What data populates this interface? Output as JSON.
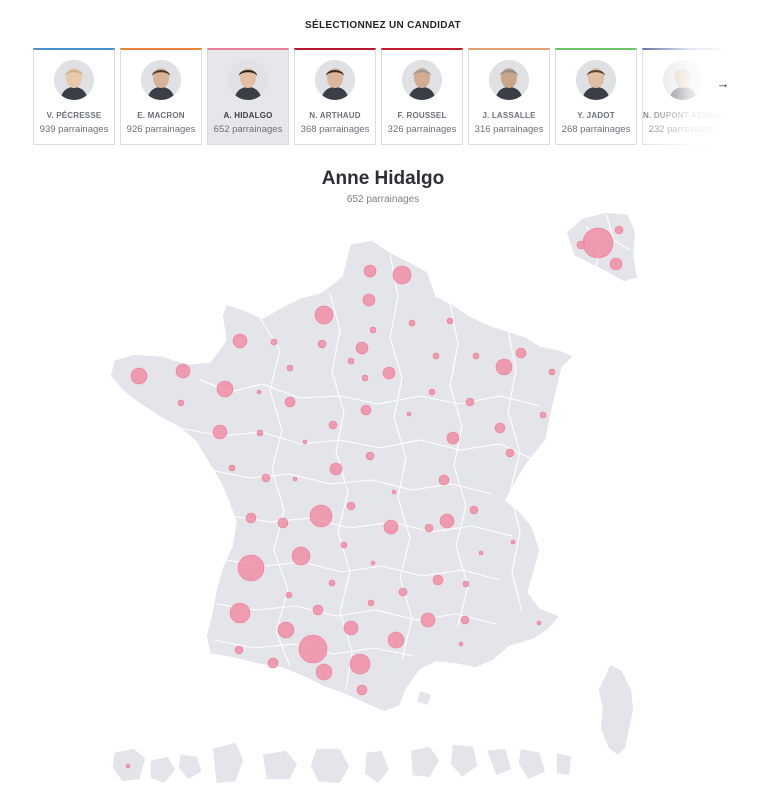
{
  "header": {
    "title": "SÉLECTIONNEZ UN CANDIDAT"
  },
  "candidates": [
    {
      "name": "V. PÉCRESSE",
      "count": "939 parrainages",
      "color": "#4a90c9",
      "icon": "portrait-photo"
    },
    {
      "name": "E. MACRON",
      "count": "926 parrainages",
      "color": "#e8843c",
      "icon": "portrait-photo"
    },
    {
      "name": "A. HIDALGO",
      "count": "652 parrainages",
      "color": "#e87d9a",
      "icon": "portrait-photo",
      "selected": true
    },
    {
      "name": "N. ARTHAUD",
      "count": "368 parrainages",
      "color": "#b3182b",
      "icon": "portrait-photo"
    },
    {
      "name": "F. ROUSSEL",
      "count": "326 parrainages",
      "color": "#c21e2e",
      "icon": "portrait-photo"
    },
    {
      "name": "J. LASSALLE",
      "count": "316 parrainages",
      "color": "#e0a074",
      "icon": "portrait-photo"
    },
    {
      "name": "Y. JADOT",
      "count": "268 parrainages",
      "color": "#6cc36a",
      "icon": "portrait-photo"
    },
    {
      "name": "N. DUPONT-AIGNAN",
      "count": "232 parrainages",
      "color": "#4b5ea8",
      "icon": "portrait-photo"
    }
  ],
  "carousel": {
    "next_icon": "arrow-right-icon",
    "next_glyph": "→"
  },
  "selection": {
    "name": "Anne Hidalgo",
    "count": "652 parrainages",
    "bubble_color": "#f08aa4",
    "land_color": "#e4e5ea"
  }
}
